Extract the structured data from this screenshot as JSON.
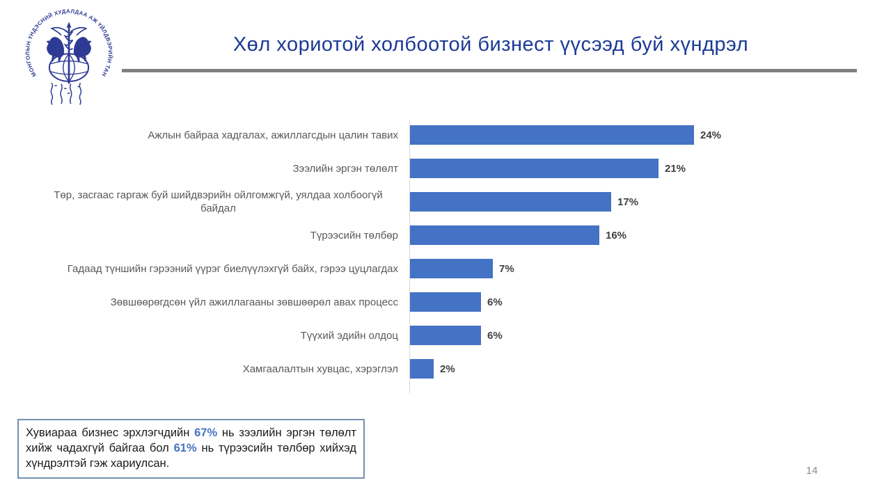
{
  "slide": {
    "title": "Хөл хориотой холбоотой бизнест үүсээд буй хүндрэл",
    "page_number": "14",
    "logo": {
      "name": "mongolian-chamber-of-commerce-emblem",
      "ring_text": "МОНГОЛЫН ҮНДЭСНИЙ ХУДАЛДАА АЖ ҮЙЛДВЭРИЙН ТАНХИМ",
      "color": "#2E3B94"
    },
    "colors": {
      "title_blue": "#1B3A96",
      "rule_gray": "#808080",
      "bar_blue": "#4472C4",
      "category_label_gray": "#595959",
      "value_label_dark": "#404040",
      "axis_gray": "#D9D9D9",
      "note_border": "#7291AE",
      "highlight_blue": "#4472C4",
      "page_number_gray": "#8A8A8A"
    }
  },
  "chart_data": {
    "type": "bar",
    "orientation": "horizontal",
    "title": "",
    "xlabel": "",
    "ylabel": "",
    "xlim": [
      0,
      26
    ],
    "grid": false,
    "legend": false,
    "data_labels": "outside-end",
    "bar_color": "#4472C4",
    "categories": [
      "Ажлын байраа хадгалах,  ажиллагсдын  цалин тавих",
      "Зээлийн  эргэн төлөлт",
      "Төр, засгаас гаргаж буй шийдвэрийн  ойлгомжгүй,  уялдаа  холбоогүй байдал",
      "Түрээсийн  төлбөр",
      "Гадаад түншийн  гэрээний  үүрэг биелүүлэхгүй  байх, гэрээ цуцлагдах",
      "Зөвшөөрөгдсөн үйл  ажиллагааны  зөвшөөрөл  авах процесс",
      "Түүхий  эдийн  олдоц",
      "Хамгаалалтын  хувцас, хэрэглэл"
    ],
    "values": [
      24,
      21,
      17,
      16,
      7,
      6,
      6,
      2
    ],
    "value_labels": [
      "24%",
      "21%",
      "17%",
      "16%",
      "7%",
      "6%",
      "6%",
      "2%"
    ]
  },
  "note": {
    "segments": [
      {
        "text": "Хувиараа  бизнес  эрхлэгчдийн  ",
        "bold": false
      },
      {
        "text": "67%",
        "bold": true
      },
      {
        "text": "  нь  зээлийн  эргэн  төлөлт  хийж  чадахгүй  байгаа  бол  ",
        "bold": false
      },
      {
        "text": "61%",
        "bold": true
      },
      {
        "text": "  нь  түрээсийн  төлбөр  хийхэд  хүндрэлтэй  гэж  хариулсан.",
        "bold": false
      }
    ]
  }
}
